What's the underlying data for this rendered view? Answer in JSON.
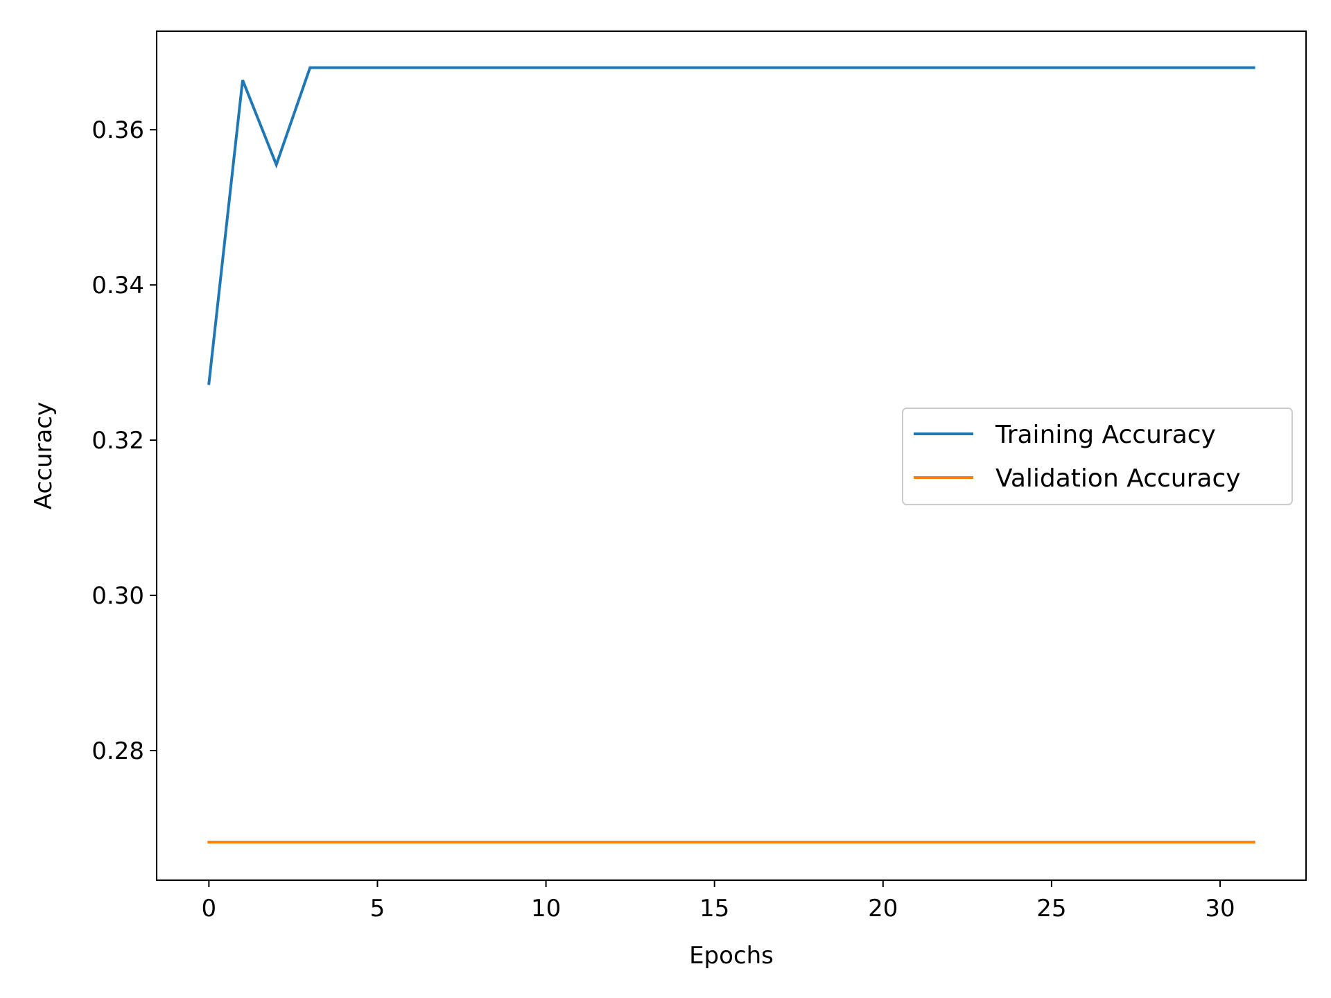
{
  "chart_data": {
    "type": "line",
    "title": "",
    "xlabel": "Epochs",
    "ylabel": "Accuracy",
    "xlim": [
      -1.55,
      32.55
    ],
    "ylim": [
      0.2633,
      0.3727
    ],
    "xticks": [
      0,
      5,
      10,
      15,
      20,
      25,
      30
    ],
    "xtick_labels": [
      "0",
      "5",
      "10",
      "15",
      "20",
      "25",
      "30"
    ],
    "yticks": [
      0.28,
      0.3,
      0.32,
      0.34,
      0.36
    ],
    "ytick_labels": [
      "0.28",
      "0.30",
      "0.32",
      "0.34",
      "0.36"
    ],
    "grid": false,
    "legend_position": "center-right",
    "series": [
      {
        "name": "Training Accuracy",
        "color": "#1f77b4",
        "x": [
          0,
          1,
          2,
          3,
          4,
          5,
          6,
          7,
          8,
          9,
          10,
          11,
          12,
          13,
          14,
          15,
          16,
          17,
          18,
          19,
          20,
          21,
          22,
          23,
          24,
          25,
          26,
          27,
          28,
          29,
          30,
          31
        ],
        "values": [
          0.3273,
          0.3664,
          0.3555,
          0.368,
          0.368,
          0.368,
          0.368,
          0.368,
          0.368,
          0.368,
          0.368,
          0.368,
          0.368,
          0.368,
          0.368,
          0.368,
          0.368,
          0.368,
          0.368,
          0.368,
          0.368,
          0.368,
          0.368,
          0.368,
          0.368,
          0.368,
          0.368,
          0.368,
          0.368,
          0.368,
          0.368,
          0.368
        ]
      },
      {
        "name": "Validation Accuracy",
        "color": "#ff7f0e",
        "x": [
          0,
          1,
          2,
          3,
          4,
          5,
          6,
          7,
          8,
          9,
          10,
          11,
          12,
          13,
          14,
          15,
          16,
          17,
          18,
          19,
          20,
          21,
          22,
          23,
          24,
          25,
          26,
          27,
          28,
          29,
          30,
          31
        ],
        "values": [
          0.2682,
          0.2682,
          0.2682,
          0.2682,
          0.2682,
          0.2682,
          0.2682,
          0.2682,
          0.2682,
          0.2682,
          0.2682,
          0.2682,
          0.2682,
          0.2682,
          0.2682,
          0.2682,
          0.2682,
          0.2682,
          0.2682,
          0.2682,
          0.2682,
          0.2682,
          0.2682,
          0.2682,
          0.2682,
          0.2682,
          0.2682,
          0.2682,
          0.2682,
          0.2682,
          0.2682,
          0.2682
        ]
      }
    ]
  }
}
